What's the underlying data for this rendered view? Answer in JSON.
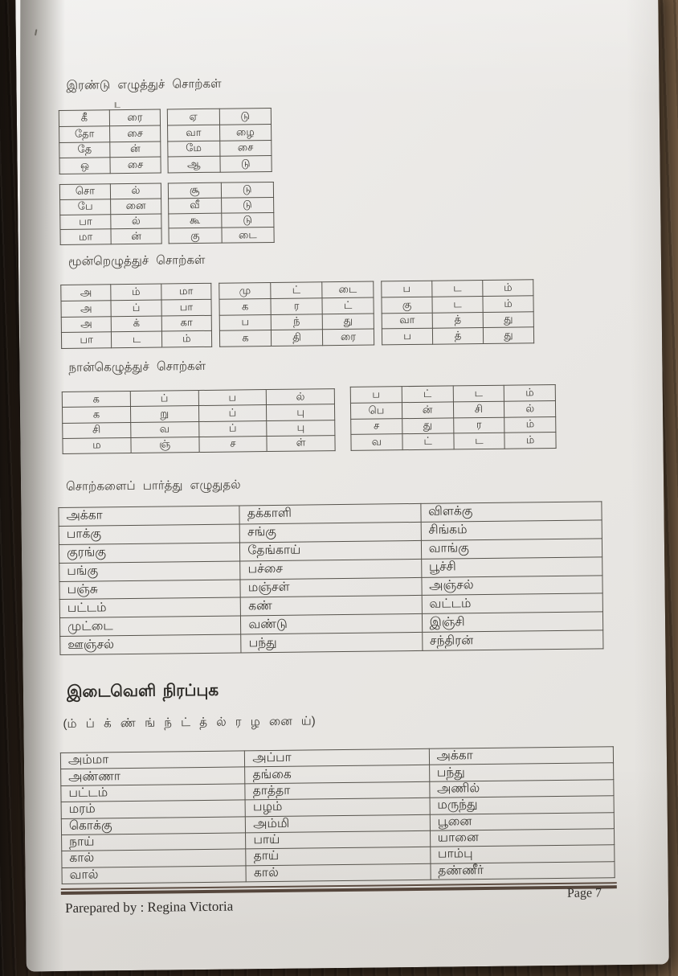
{
  "two_letter": {
    "heading": "இரண்டு எழுத்துச் சொற்கள்",
    "tables": [
      [
        [
          "கீ",
          "ரை"
        ],
        [
          "தோ",
          "சை"
        ],
        [
          "தே",
          "ன்"
        ],
        [
          "ஒ",
          "சை"
        ]
      ],
      [
        [
          "ஏ",
          "டு"
        ],
        [
          "வா",
          "ழை"
        ],
        [
          "மே",
          "சை"
        ],
        [
          "ஆ",
          "டு"
        ]
      ],
      [
        [
          "சொ",
          "ல்"
        ],
        [
          "பே",
          "னை"
        ],
        [
          "பா",
          "ல்"
        ],
        [
          "மா",
          "ன்"
        ]
      ],
      [
        [
          "சூ",
          "டு"
        ],
        [
          "வீ",
          "டு"
        ],
        [
          "கூ",
          "டு"
        ],
        [
          "கு",
          "டை"
        ]
      ]
    ]
  },
  "three_letter": {
    "heading": "மூன்றெழுத்துச் சொற்கள்",
    "tables": [
      [
        [
          "அ",
          "ம்",
          "மா"
        ],
        [
          "அ",
          "ப்",
          "பா"
        ],
        [
          "அ",
          "க்",
          "கா"
        ],
        [
          "பா",
          "ட",
          "ம்"
        ]
      ],
      [
        [
          "மு",
          "ட்",
          "டை"
        ],
        [
          "க",
          "ர",
          "ட்"
        ],
        [
          "ப",
          "ந்",
          "து"
        ],
        [
          "க",
          "தி",
          "ரை"
        ]
      ],
      [
        [
          "ப",
          "ட",
          "ம்"
        ],
        [
          "கு",
          "ட",
          "ம்"
        ],
        [
          "வா",
          "த்",
          "து"
        ],
        [
          "ப",
          "த்",
          "து"
        ]
      ]
    ]
  },
  "four_letter": {
    "heading": "நான்கெழுத்துச் சொற்கள்",
    "tables": [
      [
        [
          "க",
          "ப்",
          "ப",
          "ல்"
        ],
        [
          "க",
          "று",
          "ப்",
          "பு"
        ],
        [
          "சி",
          "வ",
          "ப்",
          "பு"
        ],
        [
          "ம",
          "ஞ்",
          "ச",
          "ள்"
        ]
      ],
      [
        [
          "ப",
          "ட்",
          "ட",
          "ம்"
        ],
        [
          "பெ",
          "ன்",
          "சி",
          "ல்"
        ],
        [
          "ச",
          "து",
          "ர",
          "ம்"
        ],
        [
          "வ",
          "ட்",
          "ட",
          "ம்"
        ]
      ]
    ]
  },
  "copy_section": {
    "heading": "சொற்களைப் பார்த்து எழுதுதல்",
    "table": [
      [
        "அக்கா",
        "தக்காளி",
        "விளக்கு"
      ],
      [
        "பாக்கு",
        "சங்கு",
        "சிங்கம்"
      ],
      [
        "குரங்கு",
        "தேங்காய்",
        "வாங்கு"
      ],
      [
        "பங்கு",
        "பச்சை",
        "பூச்சி"
      ],
      [
        "பஞ்சு",
        "மஞ்சள்",
        "அஞ்சல்"
      ],
      [
        "பட்டம்",
        "கண்",
        "வட்டம்"
      ],
      [
        "முட்டை",
        "வண்டு",
        "இஞ்சி"
      ],
      [
        "ஊஞ்சல்",
        "பந்து",
        "சந்திரன்"
      ]
    ]
  },
  "fill_section": {
    "heading": "இடைவெளி நிரப்புக",
    "letters": "(ம் ப் க் ண் ங் ந் ட் த் ல் ர ழ னை ய்)",
    "table": [
      [
        "அம்மா",
        "அப்பா",
        "அக்கா"
      ],
      [
        "அண்ணா",
        "தங்கை",
        "பந்து"
      ],
      [
        "பட்டம்",
        "தாத்தா",
        "அணில்"
      ],
      [
        "மரம்",
        "பழம்",
        "மருந்து"
      ],
      [
        "கொக்கு",
        "அம்மி",
        "பூனை"
      ],
      [
        "நாய்",
        "பாய்",
        "யானை"
      ],
      [
        "கால்",
        "தாய்",
        "பாம்பு"
      ],
      [
        "வால்",
        "கால்",
        "தண்ணீர்"
      ]
    ]
  },
  "footer": {
    "prepared_by": "Parepared by : Regina Victoria",
    "page": "Page 7"
  }
}
